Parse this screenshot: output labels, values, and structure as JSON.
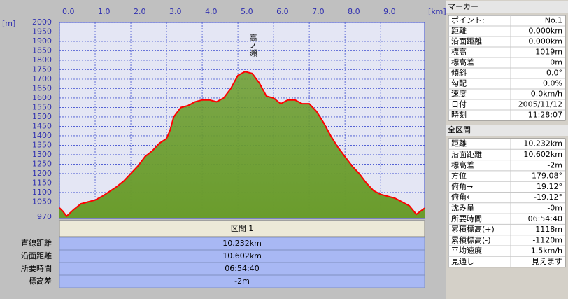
{
  "chart_data": {
    "type": "area",
    "xlabel": "[km]",
    "ylabel": "[m]",
    "annotation": "高ノ瀬",
    "x": [
      0,
      0.1,
      0.2,
      0.4,
      0.6,
      0.8,
      1.0,
      1.2,
      1.4,
      1.6,
      1.8,
      2.0,
      2.2,
      2.4,
      2.6,
      2.8,
      3.0,
      3.1,
      3.2,
      3.4,
      3.6,
      3.8,
      4.0,
      4.2,
      4.4,
      4.6,
      4.8,
      5.0,
      5.2,
      5.4,
      5.6,
      5.8,
      6.0,
      6.2,
      6.4,
      6.6,
      6.8,
      7.0,
      7.2,
      7.4,
      7.6,
      7.8,
      8.0,
      8.2,
      8.4,
      8.6,
      8.8,
      9.0,
      9.2,
      9.4,
      9.6,
      9.8,
      10.0,
      10.232
    ],
    "values": [
      1019,
      1000,
      975,
      1010,
      1040,
      1050,
      1060,
      1080,
      1105,
      1130,
      1160,
      1200,
      1240,
      1290,
      1320,
      1360,
      1385,
      1430,
      1500,
      1550,
      1560,
      1580,
      1590,
      1590,
      1580,
      1600,
      1650,
      1720,
      1740,
      1730,
      1680,
      1610,
      1600,
      1570,
      1590,
      1590,
      1570,
      1570,
      1530,
      1470,
      1400,
      1340,
      1290,
      1240,
      1200,
      1150,
      1110,
      1090,
      1080,
      1070,
      1050,
      1030,
      985,
      1017
    ],
    "color": "#ff0000",
    "fill": "#6a9c2c",
    "xlim": [
      0,
      10.232
    ],
    "ylim": [
      970,
      2000
    ],
    "xticks": [
      {
        "value": 0,
        "label": "0.0"
      },
      {
        "value": 1,
        "label": "1.0"
      },
      {
        "value": 2,
        "label": "2.0"
      },
      {
        "value": 3,
        "label": "3.0"
      },
      {
        "value": 4,
        "label": "4.0"
      },
      {
        "value": 5,
        "label": "5.0"
      },
      {
        "value": 6,
        "label": "6.0"
      },
      {
        "value": 7,
        "label": "7.0"
      },
      {
        "value": 8,
        "label": "8.0"
      },
      {
        "value": 9,
        "label": "9.0"
      }
    ],
    "yticks": [
      970,
      1050,
      1100,
      1150,
      1200,
      1250,
      1300,
      1350,
      1400,
      1450,
      1500,
      1550,
      1600,
      1650,
      1700,
      1750,
      1800,
      1850,
      1900,
      1950,
      2000
    ],
    "grid": true
  },
  "section": {
    "title": "区間 1",
    "rows": [
      [
        "直線距離",
        "10.232km"
      ],
      [
        "沿面距離",
        "10.602km"
      ],
      [
        "所要時間",
        "06:54:40"
      ],
      [
        "標高差",
        "-2m"
      ]
    ]
  },
  "marker": {
    "title": "マーカー",
    "rows": [
      [
        "ポイント:",
        "No.1"
      ],
      [
        "距離",
        "0.000km"
      ],
      [
        "沿面距離",
        "0.000km"
      ],
      [
        "標高",
        "1019m"
      ],
      [
        "標高差",
        "0m"
      ],
      [
        "傾斜",
        "0.0°"
      ],
      [
        "勾配",
        "0.0%"
      ],
      [
        "速度",
        "0.0km/h"
      ],
      [
        "日付",
        "2005/11/12"
      ],
      [
        "時刻",
        "11:28:07"
      ]
    ]
  },
  "total": {
    "title": "全区間",
    "rows": [
      [
        "距離",
        "10.232km"
      ],
      [
        "沿面距離",
        "10.602km"
      ],
      [
        "標高差",
        "-2m"
      ],
      [
        "方位",
        "179.08°"
      ],
      [
        "俯角→",
        "19.12°"
      ],
      [
        "俯角←",
        "-19.12°"
      ],
      [
        "沈み量",
        "-0m"
      ],
      [
        "所要時間",
        "06:54:40"
      ],
      [
        "累積標高(+)",
        "1118m"
      ],
      [
        "累積標高(-)",
        "-1120m"
      ],
      [
        "平均速度",
        "1.5km/h"
      ],
      [
        "見通し",
        "見えます"
      ]
    ]
  }
}
